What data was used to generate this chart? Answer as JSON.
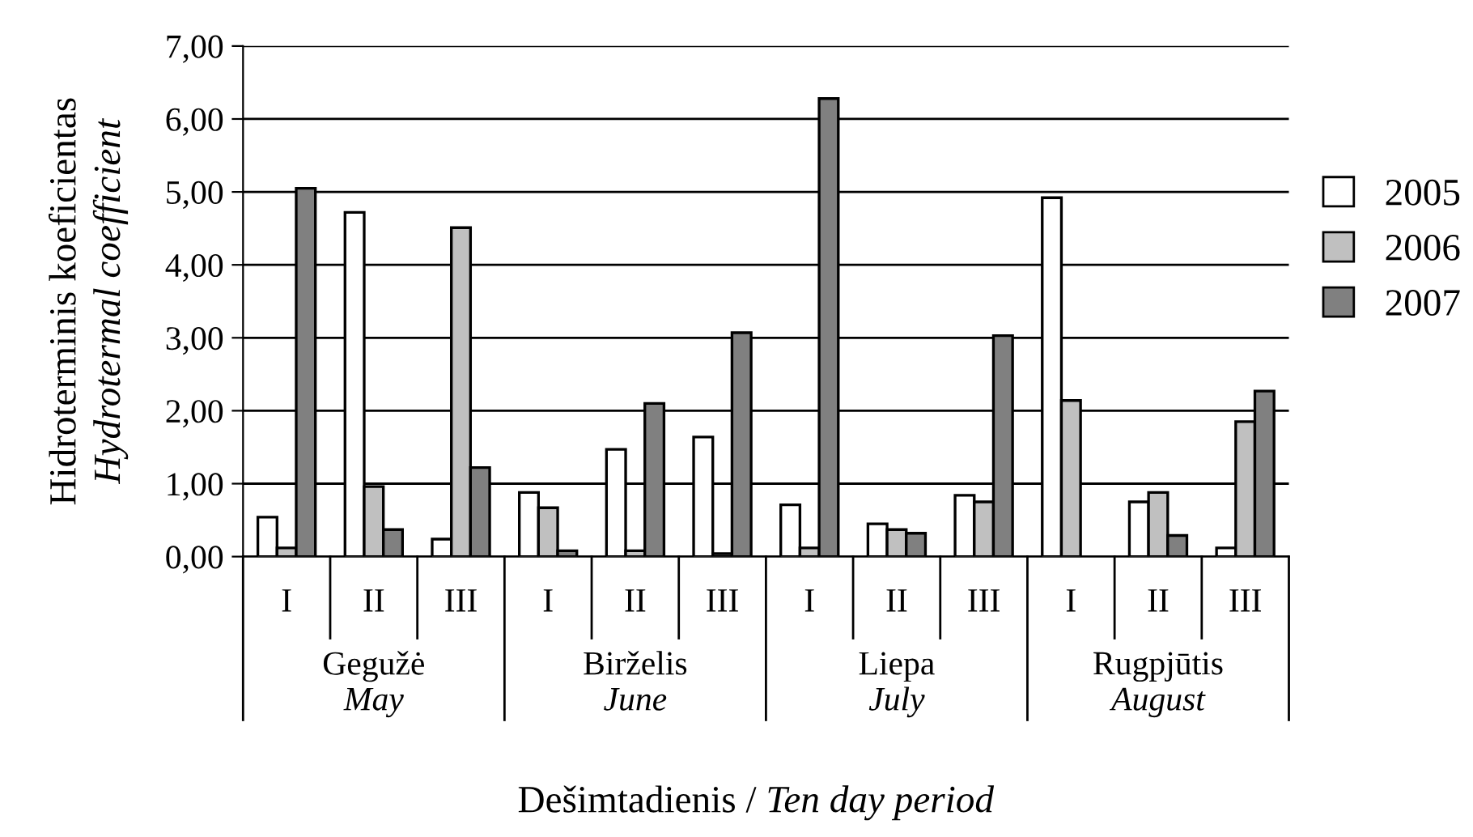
{
  "chart_data": {
    "type": "bar",
    "xlabel": "Dešimtadienis / Ten day period",
    "ylabel": "Hidroterminis koeficientas\nHydrotermal coefficient",
    "categories": [
      "I",
      "II",
      "III",
      "I",
      "II",
      "III",
      "I",
      "II",
      "III",
      "I",
      "II",
      "III"
    ],
    "annotations": [
      "Gegužė\nMay",
      "Birželis\nJune",
      "Liepa\nJuly",
      "Rugpjūtis\nAugust"
    ],
    "series": [
      {
        "name": "2005",
        "color": "#ffffff",
        "values": [
          0.54,
          4.72,
          0.24,
          0.88,
          1.47,
          1.64,
          0.71,
          0.45,
          0.84,
          4.92,
          0.75,
          0.12
        ]
      },
      {
        "name": "2006",
        "color": "#c0c0c0",
        "values": [
          0.12,
          0.96,
          4.51,
          0.67,
          0.08,
          0.04,
          0.12,
          0.37,
          0.75,
          2.14,
          0.88,
          1.85
        ]
      },
      {
        "name": "2007",
        "color": "#808080",
        "values": [
          5.05,
          0.37,
          1.22,
          0.08,
          2.1,
          3.07,
          6.28,
          0.32,
          3.03,
          null,
          0.29,
          2.27
        ]
      }
    ],
    "ylim": [
      0,
      7
    ],
    "yticks": [
      {
        "value": 0,
        "label": "0,00"
      },
      {
        "value": 1,
        "label": "1,00"
      },
      {
        "value": 2,
        "label": "2,00"
      },
      {
        "value": 3,
        "label": "3,00"
      },
      {
        "value": 4,
        "label": "4,00"
      },
      {
        "value": 5,
        "label": "5,00"
      },
      {
        "value": 6,
        "label": "6,00"
      },
      {
        "value": 7,
        "label": "7,00"
      }
    ],
    "grid": "y",
    "legend": "right"
  }
}
